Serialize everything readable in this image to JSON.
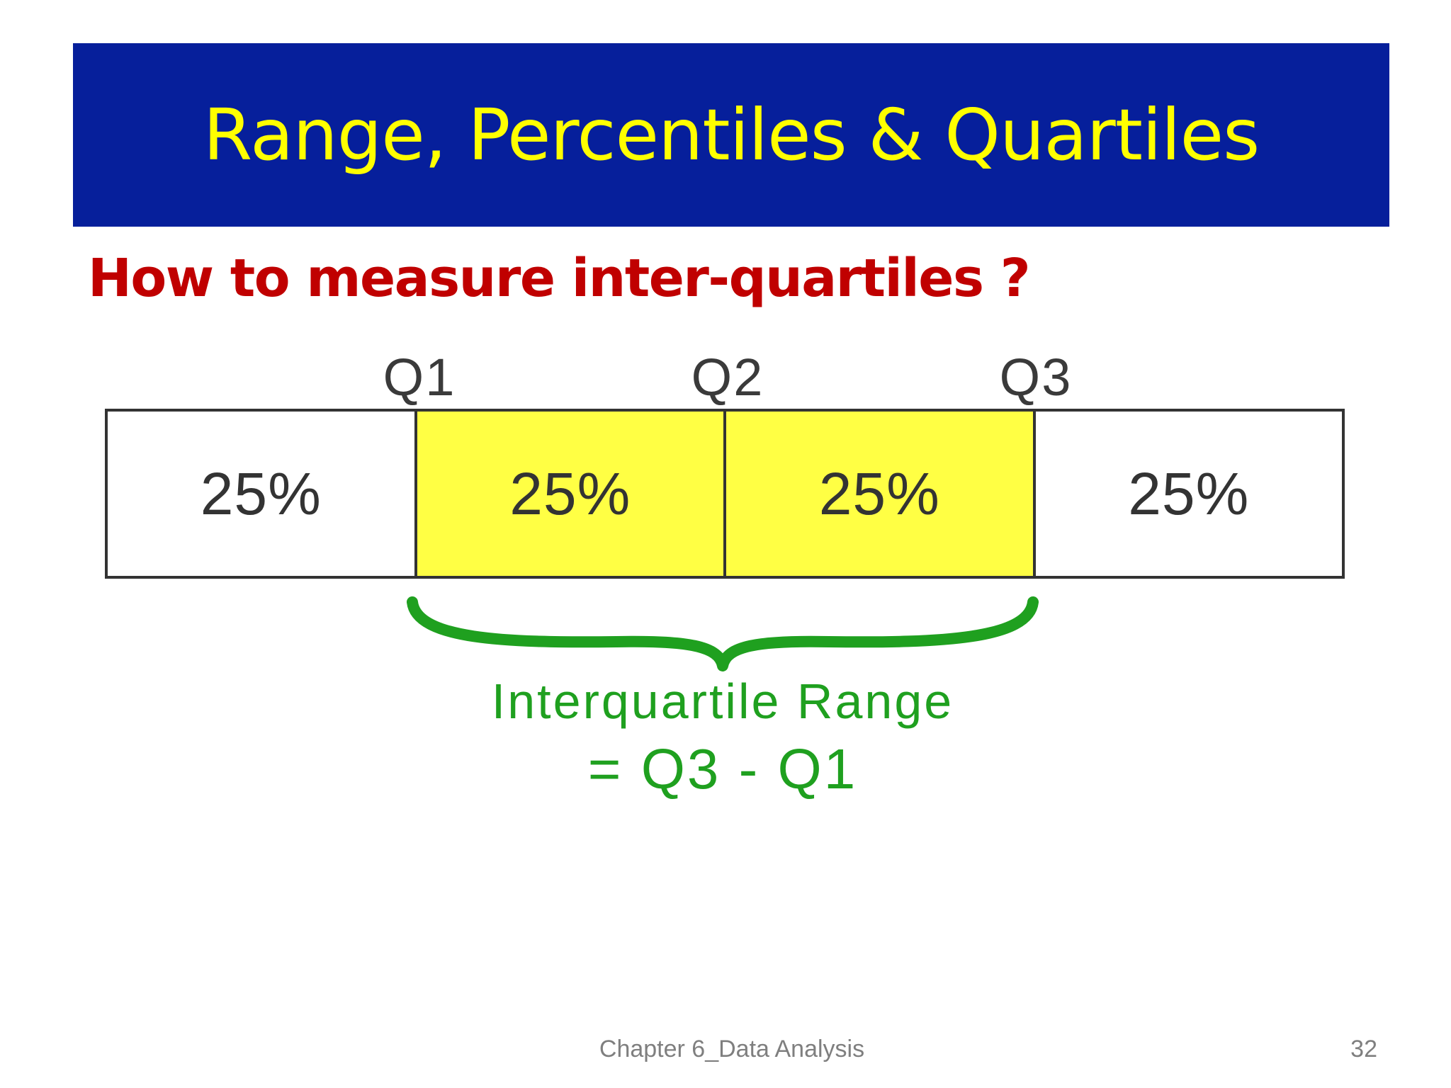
{
  "slide": {
    "title": "Range, Percentiles & Quartiles",
    "subtitle": "How to measure inter-quartiles ?",
    "footer": "Chapter 6_Data Analysis",
    "page_number": "32"
  },
  "diagram": {
    "quartile_labels": [
      "Q1",
      "Q2",
      "Q3"
    ],
    "segments": [
      {
        "label": "25%",
        "highlighted": false
      },
      {
        "label": "25%",
        "highlighted": true
      },
      {
        "label": "25%",
        "highlighted": true
      },
      {
        "label": "25%",
        "highlighted": false
      }
    ],
    "iqr_caption_line1": "Interquartile Range",
    "iqr_caption_line2": "= Q3 - Q1"
  },
  "colors": {
    "title_bar": "#061F9B",
    "title_text": "#FFFF00",
    "subtitle_text": "#C00000",
    "highlight_fill": "#FFFF44",
    "brace_and_caption": "#1FA01F"
  }
}
